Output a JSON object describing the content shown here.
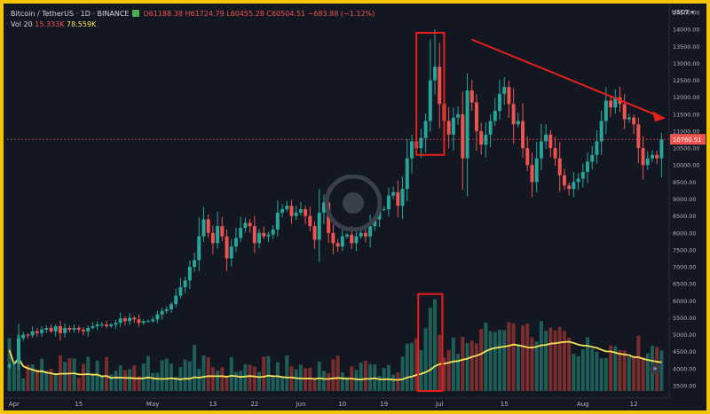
{
  "legend": {
    "symbol": "Bitcoin / TetherUS · 1D · BINANCE",
    "ohlc": "O61188.38 H61724.79 L60455.28 C60504.51 −683.88 (−1.12%)",
    "volume_label": "Vol 20",
    "volume_value": "15.333K",
    "volume_ma": "78.559K"
  },
  "scale_label": "USDT",
  "current_price_label": "10760.51",
  "nav_icon": "double-chevron-right-icon",
  "watermark_icon": "tradingview-logo-icon",
  "colors": {
    "background": "#131722",
    "frame": "#f5c400",
    "up": "#26a69a",
    "down": "#ef5350",
    "ma": "#f5e15a",
    "annotation": "#e8201c"
  },
  "chart_data": {
    "type": "candlestick",
    "title": "Bitcoin / TetherUS · 1D · BINANCE",
    "xlabel": "",
    "ylabel": "",
    "ylim": [
      3500,
      14500
    ],
    "y_ticks": [
      14500,
      14000,
      13500,
      13000,
      12500,
      12000,
      11500,
      11000,
      10500,
      10000,
      9500,
      9000,
      8500,
      8000,
      7500,
      7000,
      6500,
      6000,
      5500,
      5000,
      4500,
      4000,
      3500
    ],
    "x_ticks": [
      {
        "label": "Apr",
        "index": 1
      },
      {
        "label": "15",
        "index": 15
      },
      {
        "label": "May",
        "index": 31
      },
      {
        "label": "13",
        "index": 44
      },
      {
        "label": "22",
        "index": 53
      },
      {
        "label": "Jun",
        "index": 63
      },
      {
        "label": "10",
        "index": 72
      },
      {
        "label": "19",
        "index": 81
      },
      {
        "label": "Jul",
        "index": 93
      },
      {
        "label": "15",
        "index": 107
      },
      {
        "label": "Aug",
        "index": 124
      },
      {
        "label": "12",
        "index": 135
      }
    ],
    "close": [
      4120,
      4150,
      4900,
      5000,
      4980,
      5100,
      5050,
      5150,
      5200,
      5100,
      5250,
      5050,
      5200,
      5150,
      5200,
      5150,
      5100,
      5200,
      5250,
      5300,
      5300,
      5250,
      5300,
      5350,
      5480,
      5400,
      5500,
      5450,
      5350,
      5400,
      5400,
      5450,
      5600,
      5700,
      5750,
      5900,
      6150,
      6400,
      6600,
      7000,
      7200,
      7900,
      8400,
      8000,
      7700,
      8200,
      7900,
      7250,
      7600,
      7850,
      8150,
      8300,
      8200,
      7700,
      8000,
      7900,
      7950,
      8100,
      8600,
      8700,
      8800,
      8500,
      8600,
      8700,
      8500,
      8200,
      7800,
      8600,
      8900,
      8000,
      7700,
      7600,
      7900,
      7950,
      7700,
      7900,
      8000,
      7900,
      8200,
      8400,
      8700,
      8700,
      9100,
      9200,
      8800,
      9300,
      10200,
      10700,
      10500,
      10800,
      11300,
      12500,
      12900,
      11800,
      11300,
      10900,
      11400,
      11500,
      10200,
      12200,
      11850,
      11000,
      10600,
      10900,
      11300,
      11600,
      12100,
      12300,
      11800,
      11200,
      11300,
      10500,
      10000,
      9500,
      10200,
      10700,
      10900,
      10500,
      10200,
      9700,
      9400,
      9300,
      9500,
      9600,
      9800,
      10100,
      10300,
      10700,
      11300,
      11900,
      11700,
      12000,
      11800,
      11350,
      11400,
      11200,
      10500,
      10000,
      10200,
      10300,
      10200,
      10760
    ],
    "volume_ma_period": 20
  }
}
